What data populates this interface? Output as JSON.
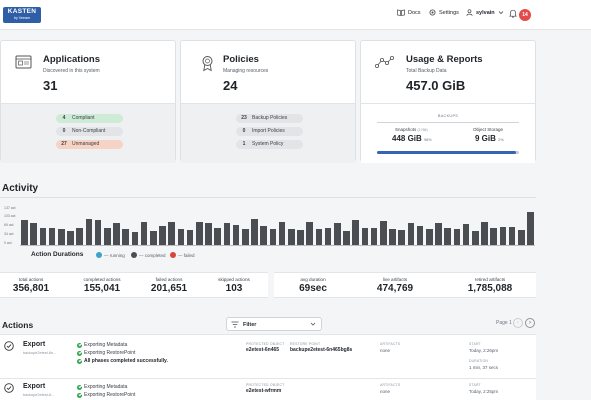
{
  "header": {
    "logo_top": "KASTEN",
    "logo_bottom": "by Veeam",
    "docs_label": "Docs",
    "settings_label": "Settings",
    "user_label": "sylvain",
    "notifications_count": "14",
    "accent_color": "#2f5ea8",
    "badge_color": "#e34b4b"
  },
  "cards": {
    "applications": {
      "title": "Applications",
      "subtitle": "Discovered in this system",
      "count": "31",
      "pills": [
        {
          "n": "4",
          "label": "Compliant"
        },
        {
          "n": "0",
          "label": "Non-Compliant"
        },
        {
          "n": "27",
          "label": "Unmanaged"
        }
      ]
    },
    "policies": {
      "title": "Policies",
      "subtitle": "Managing resources",
      "count": "24",
      "pills": [
        {
          "n": "23",
          "label": "Backup Policies"
        },
        {
          "n": "0",
          "label": "Import Policies"
        },
        {
          "n": "1",
          "label": "System Policy"
        }
      ]
    },
    "usage": {
      "title": "Usage & Reports",
      "subtitle": "Total Backup Data",
      "total": "457.0 GiB",
      "backups_label": "BACKUPS",
      "snapshots_label": "Snapshots",
      "snapshots_count": "(1766)",
      "snapshots_value": "448 GiB",
      "snapshots_pct": "98%",
      "object_label": "Object Storage",
      "object_value": "9 GiB",
      "object_pct": "2%",
      "snapshot_fraction": 0.98
    }
  },
  "activity": {
    "title": "Activity",
    "y_labels": [
      "137 act",
      "103 act",
      "69 act",
      "34 act",
      "0 act"
    ],
    "bar_values": [
      0.62,
      0.55,
      0.42,
      0.42,
      0.39,
      0.36,
      0.43,
      0.66,
      0.62,
      0.42,
      0.56,
      0.4,
      0.33,
      0.58,
      0.36,
      0.48,
      0.58,
      0.39,
      0.38,
      0.58,
      0.55,
      0.42,
      0.55,
      0.49,
      0.41,
      0.64,
      0.48,
      0.41,
      0.58,
      0.4,
      0.37,
      0.58,
      0.4,
      0.42,
      0.55,
      0.34,
      0.63,
      0.43,
      0.42,
      0.6,
      0.4,
      0.37,
      0.56,
      0.48,
      0.4,
      0.56,
      0.42,
      0.41,
      0.53,
      0.34,
      0.58,
      0.42,
      0.46,
      0.46,
      0.38,
      0.83
    ],
    "bar_color": "#4a4d52",
    "legend_title": "Action Durations",
    "legend": [
      {
        "label": "— running",
        "color": "#3aa3c9"
      },
      {
        "label": "— completed",
        "color": "#4a4d52"
      },
      {
        "label": "— failed",
        "color": "#d9453b"
      }
    ],
    "metrics": [
      {
        "label": "total actions",
        "value": "356,801"
      },
      {
        "label": "completed actions",
        "value": "155,041"
      },
      {
        "label": "failed actions",
        "value": "201,651"
      },
      {
        "label": "skipped actions",
        "value": "103"
      },
      {
        "label": "avg duration",
        "value": "69sec"
      },
      {
        "label": "live artifacts",
        "value": "474,769"
      },
      {
        "label": "retired artifacts",
        "value": "1,785,088"
      }
    ]
  },
  "actions": {
    "title": "Actions",
    "filter_label": "Filter",
    "pager_label": "Page 1",
    "rows": [
      {
        "type": "Export",
        "id": "backupe2etest-6n...",
        "phases": [
          "Exporting Metadata",
          "Exporting RestorePoint",
          "All phases completed successfully."
        ],
        "protected_object_h": "PROTECTED OBJECT",
        "protected_object": "e2etest-6n465",
        "restore_point_h": "RESTORE POINT",
        "restore_point": "backupe2etest-6n465bg8s",
        "artifacts_h": "ARTIFACTS",
        "artifacts": "none",
        "start_h": "START",
        "start": "Today, 2:26pm",
        "duration_h": "DURATION",
        "duration": "1 min, 37 secs"
      },
      {
        "type": "Export",
        "id": "backupe2etest-6...",
        "phases": [
          "Exporting Metadata",
          "Exporting RestorePoint"
        ],
        "protected_object_h": "PROTECTED OBJECT",
        "protected_object": "e2etest-wfrmm",
        "artifacts_h": "ARTIFACTS",
        "artifacts": "none",
        "start_h": "START",
        "start": "Today, 2:25pm"
      }
    ]
  }
}
